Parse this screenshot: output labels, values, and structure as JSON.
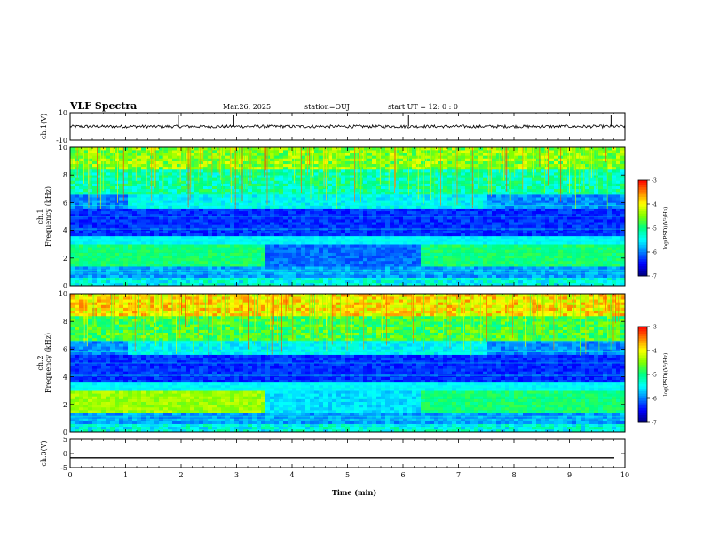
{
  "header": {
    "title": "VLF Spectra",
    "date": "Mar.26, 2025",
    "station": "station=OUJ",
    "start": "start UT = 12: 0 : 0"
  },
  "colors": {
    "spectrogram_colormap": [
      "#000080",
      "#0000ff",
      "#0080ff",
      "#00ffff",
      "#00ff80",
      "#80ff00",
      "#ffff00",
      "#ff8000",
      "#ff0000",
      "#ff8080",
      "#ffffff"
    ],
    "waveform_trace": "#000000"
  },
  "chart_data": [
    {
      "type": "line",
      "name": "ch1-waveform",
      "ylabel": "ch.1(V)",
      "ylim": [
        -10,
        10
      ],
      "yticks": [
        "10",
        "-10"
      ],
      "xlim": [
        0,
        10
      ],
      "baseline": 0,
      "spikes_min": [
        1.95,
        2.95,
        6.1,
        9.75
      ]
    },
    {
      "type": "heatmap",
      "name": "ch1-spectrogram",
      "ylabel": "ch.1\nFrequency (kHz)",
      "ylim": [
        0,
        10
      ],
      "yticks": [
        "0",
        "2",
        "4",
        "6",
        "8",
        "10"
      ],
      "xlim": [
        0,
        10
      ],
      "colorbar": {
        "label": "log(PSD)(V²/Hz)",
        "range": [
          -7,
          -3
        ],
        "ticks": [
          "-3",
          "-4",
          "-5",
          "-6",
          "-7"
        ]
      }
    },
    {
      "type": "heatmap",
      "name": "ch2-spectrogram",
      "ylabel": "ch.2\nFrequency (kHz)",
      "ylim": [
        0,
        10
      ],
      "yticks": [
        "0",
        "2",
        "4",
        "6",
        "8",
        "10"
      ],
      "xlim": [
        0,
        10
      ],
      "colorbar": {
        "label": "log(PSD)(V²/Hz)",
        "range": [
          -7,
          -3
        ],
        "ticks": [
          "-3",
          "-4",
          "-5",
          "-6",
          "-7"
        ]
      }
    },
    {
      "type": "line",
      "name": "ch3-waveform",
      "ylabel": "ch.3(V)",
      "ylim": [
        -5,
        5
      ],
      "yticks": [
        "5",
        "0",
        "-5"
      ],
      "xlim": [
        0,
        10
      ],
      "baseline": -1.5
    }
  ],
  "xaxis": {
    "label": "Time (min)",
    "ticks": [
      "0",
      "1",
      "2",
      "3",
      "4",
      "5",
      "6",
      "7",
      "8",
      "9",
      "10"
    ]
  }
}
